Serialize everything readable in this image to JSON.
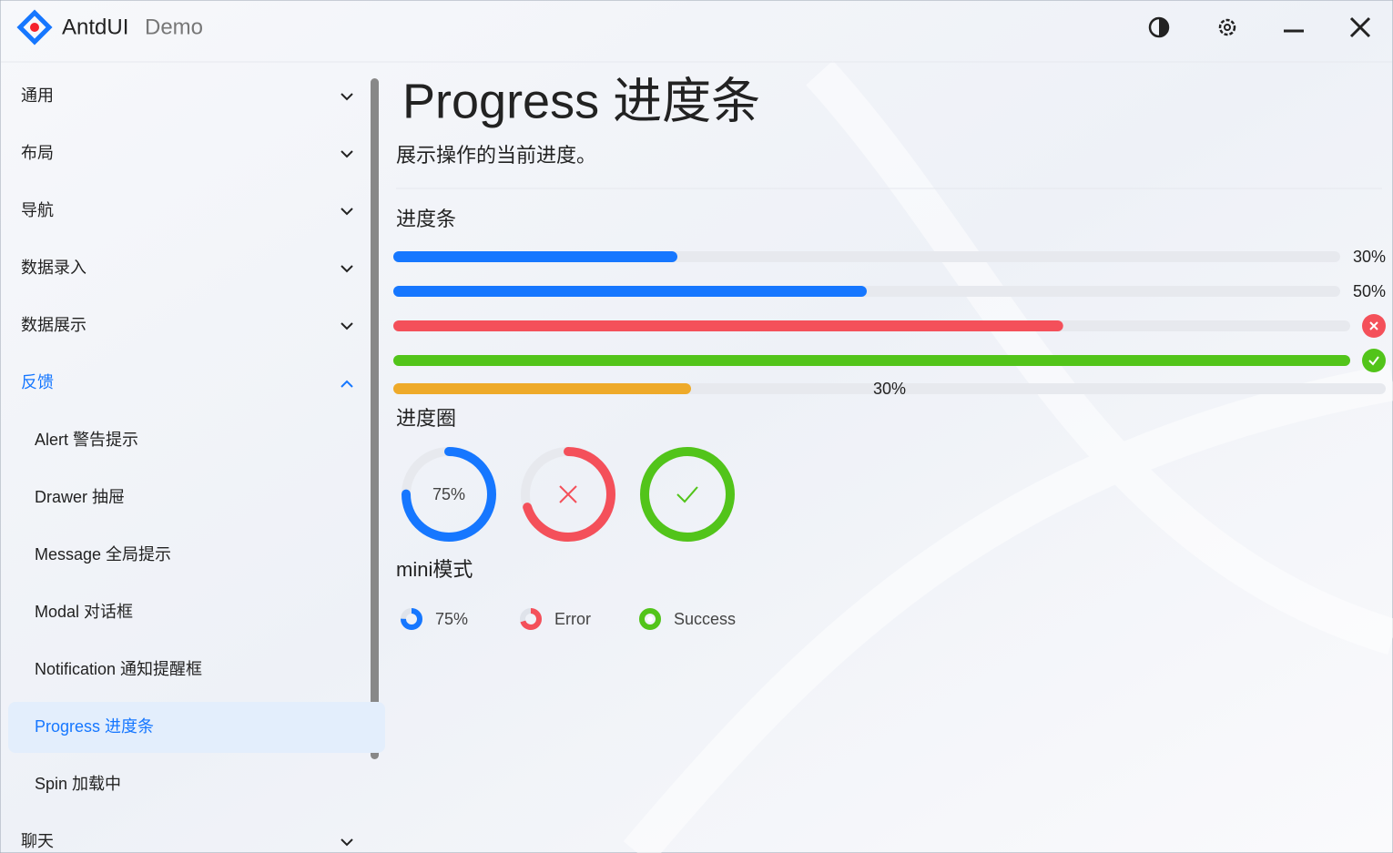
{
  "window": {
    "app_name": "AntdUI",
    "app_suffix": "Demo"
  },
  "menu": {
    "groups": [
      "通用",
      "布局",
      "导航",
      "数据录入",
      "数据展示"
    ],
    "open_group": "反馈",
    "items": [
      "Alert 警告提示",
      "Drawer 抽屉",
      "Message 全局提示",
      "Modal 对话框",
      "Notification 通知提醒框",
      "Progress 进度条",
      "Spin 加载中"
    ],
    "selected": 5,
    "after": [
      "聊天"
    ]
  },
  "page": {
    "title": "Progress 进度条",
    "description": "展示操作的当前进度。"
  },
  "bars": {
    "heading": "进度条",
    "items": [
      {
        "value": 30,
        "label": "30%",
        "status": "normal"
      },
      {
        "value": 50,
        "label": "50%",
        "status": "normal"
      },
      {
        "value": 70,
        "status": "error"
      },
      {
        "value": 100,
        "status": "success"
      },
      {
        "value": 30,
        "label": "30%",
        "status": "warning"
      }
    ]
  },
  "circles": {
    "heading": "进度圈",
    "items": [
      {
        "value": 75,
        "label": "75%",
        "status": "normal"
      },
      {
        "value": 70,
        "status": "error"
      },
      {
        "value": 100,
        "status": "success"
      }
    ]
  },
  "mini": {
    "heading": "mini模式",
    "items": [
      {
        "value": 75,
        "label": "75%",
        "status": "normal"
      },
      {
        "value": 70,
        "label": "Error",
        "status": "error"
      },
      {
        "value": 100,
        "label": "Success",
        "status": "success"
      }
    ]
  }
}
